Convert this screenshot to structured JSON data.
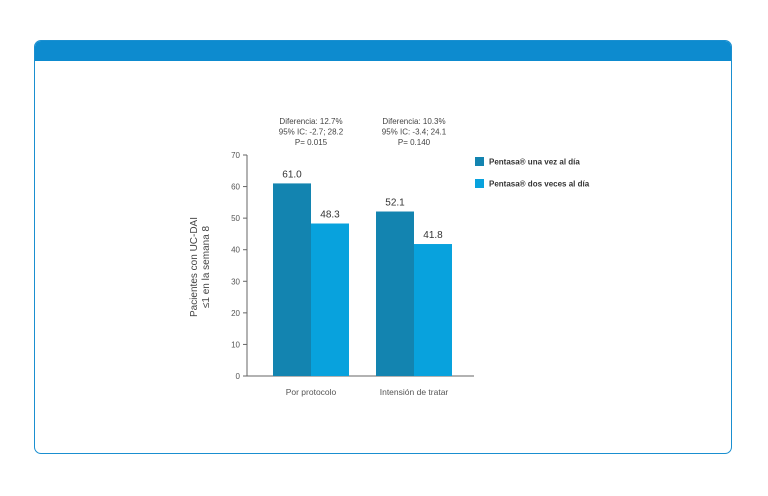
{
  "colors": {
    "frame": "#1a8fd0",
    "header": "#0d8bcf",
    "series_once": "#1384b0",
    "series_twice": "#08a2dd"
  },
  "chart_data": {
    "type": "bar",
    "categories": [
      "Por protocolo",
      "Intensión de tratar"
    ],
    "series": [
      {
        "name": "Pentasa® una vez al día",
        "values": [
          61.0,
          52.1
        ],
        "labels": [
          "61.0",
          "52.1"
        ]
      },
      {
        "name": "Pentasa® dos veces al día",
        "values": [
          48.3,
          41.8
        ],
        "labels": [
          "48.3",
          "41.8"
        ]
      }
    ],
    "ylabel_lines": [
      "Pacientes con UC-DAI",
      "≤1 en la semana 8"
    ],
    "ylim": [
      0,
      70
    ],
    "yticks": [
      "0",
      "10",
      "20",
      "30",
      "40",
      "50",
      "60",
      "70"
    ],
    "annotations": [
      [
        "Diferencia: 12.7%",
        "95% IC: -2.7; 28.2",
        "P= 0.015"
      ],
      [
        "Diferencia: 10.3%",
        "95% IC: -3.4; 24.1",
        "P= 0.140"
      ]
    ],
    "legend_position": "top-right",
    "grid": false
  }
}
